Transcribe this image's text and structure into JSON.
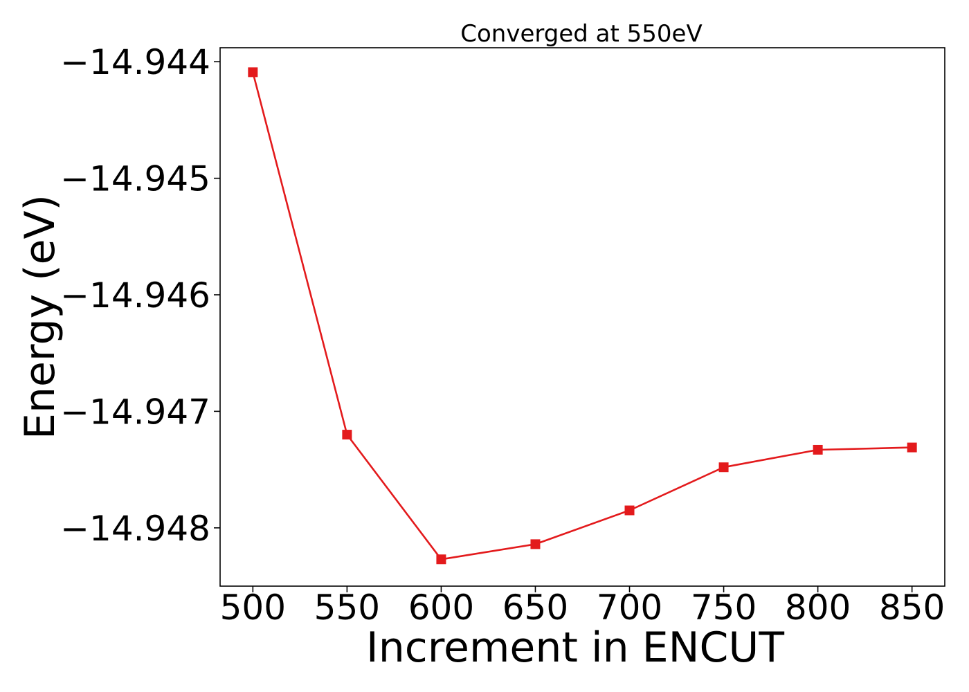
{
  "chart_data": {
    "type": "line",
    "title": "Converged at 550eV",
    "xlabel": "Increment in ENCUT",
    "ylabel": "Energy (eV)",
    "x": [
      500,
      550,
      600,
      650,
      700,
      750,
      800,
      850
    ],
    "series": [
      {
        "values": [
          -14.94409,
          -14.9472,
          -14.94827,
          -14.94814,
          -14.94785,
          -14.94748,
          -14.94733,
          -14.94731
        ],
        "color": "#e31a1c",
        "marker": "square"
      }
    ],
    "x_ticks": [
      500,
      550,
      600,
      650,
      700,
      750,
      800,
      850
    ],
    "x_tick_labels": [
      "500",
      "550",
      "600",
      "650",
      "700",
      "750",
      "800",
      "850"
    ],
    "y_ticks": [
      -14.944,
      -14.945,
      -14.946,
      -14.947,
      -14.948
    ],
    "y_tick_labels": [
      "−14.944",
      "−14.945",
      "−14.946",
      "−14.947",
      "−14.948"
    ],
    "xlim": [
      482.6,
      867.4
    ],
    "ylim": [
      -14.9485,
      -14.94388
    ],
    "grid": false,
    "legend": "none"
  }
}
